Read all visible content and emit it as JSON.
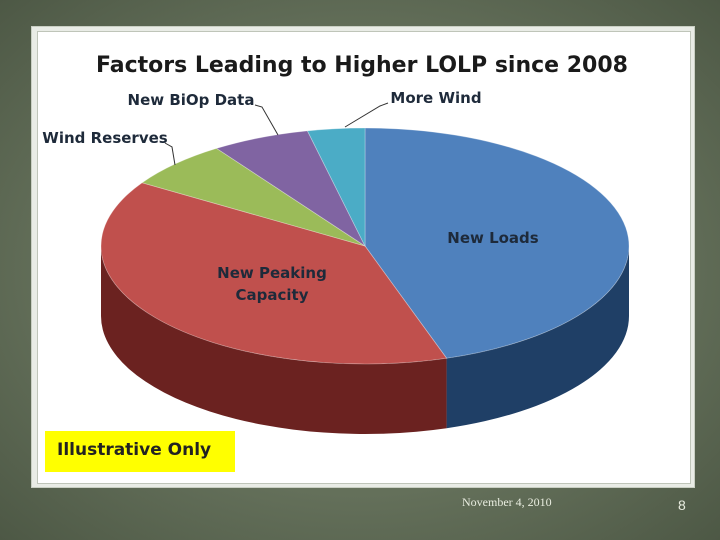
{
  "slide": {
    "footer_date": "November 4, 2010",
    "page_number": "8",
    "note": "Illustrative Only"
  },
  "chart_data": {
    "type": "pie",
    "title": "Factors Leading to Higher LOLP since 2008",
    "style": "3d",
    "slices": [
      {
        "label": "New Loads",
        "value": 45,
        "color": "#4f81bd",
        "side_color": "#1f3f66"
      },
      {
        "label": "New Peaking Capacity",
        "value": 39,
        "color": "#c0504d",
        "side_color": "#6b2220"
      },
      {
        "label": "Wind Reserves",
        "value": 6.5,
        "color": "#9bbb59",
        "side_color": "#556b2a"
      },
      {
        "label": "New BiOp Data",
        "value": 6,
        "color": "#8064a2",
        "side_color": "#44335a"
      },
      {
        "label": "More Wind",
        "value": 3.5,
        "color": "#4bacc6",
        "side_color": "#235f70"
      }
    ]
  }
}
